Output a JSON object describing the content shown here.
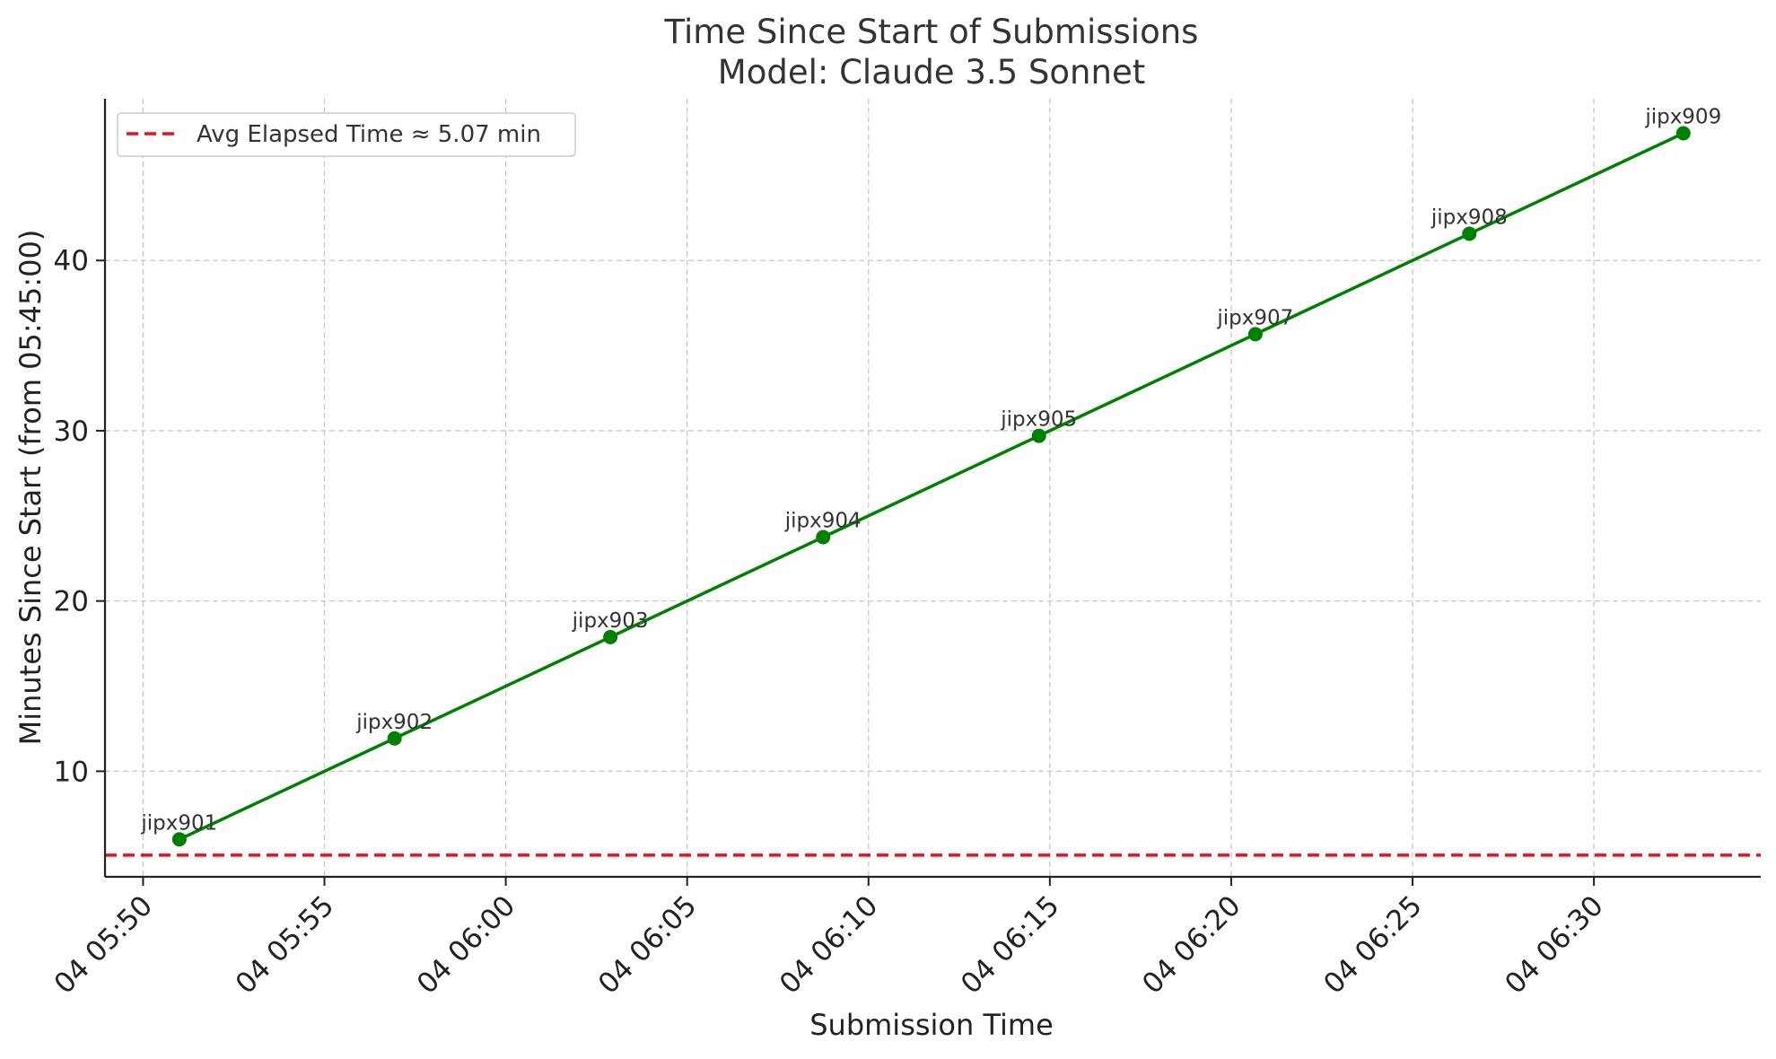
{
  "chart_data": {
    "type": "line",
    "title": "Time Since Start of Submissions",
    "subtitle": "Model: Claude 3.5 Sonnet",
    "xlabel": "Submission Time",
    "ylabel": "Minutes Since Start (from 05:45:00)",
    "x_ticks": [
      "04 05:50",
      "04 05:55",
      "04 06:00",
      "04 06:05",
      "04 06:10",
      "04 06:15",
      "04 06:20",
      "04 06:25",
      "04 06:30"
    ],
    "y_ticks": [
      "10",
      "20",
      "30",
      "40"
    ],
    "xlim": [
      "04 05:48:57",
      "04 06:34:36"
    ],
    "ylim": [
      3.8,
      49.5
    ],
    "grid": true,
    "series": [
      {
        "color": "#008000",
        "points": [
          {
            "label": "jipx901",
            "x": "04 05:51:00",
            "y": 6.0
          },
          {
            "label": "jipx902",
            "x": "04 05:56:56",
            "y": 11.93
          },
          {
            "label": "jipx903",
            "x": "04 06:02:53",
            "y": 17.88
          },
          {
            "label": "jipx904",
            "x": "04 06:08:45",
            "y": 23.75
          },
          {
            "label": "jipx905",
            "x": "04 06:14:42",
            "y": 29.7
          },
          {
            "label": "jipx907",
            "x": "04 06:20:40",
            "y": 35.67
          },
          {
            "label": "jipx908",
            "x": "04 06:26:34",
            "y": 41.57
          },
          {
            "label": "jipx909",
            "x": "04 06:32:28",
            "y": 47.47
          }
        ]
      }
    ],
    "reference_line": {
      "name": "Avg Elapsed Time ≈ 5.07 min",
      "y": 5.07,
      "color": "#e8101a",
      "style": "dashed"
    },
    "legend": {
      "position": "top-left",
      "entries": [
        "Avg Elapsed Time ≈ 5.07 min"
      ]
    }
  }
}
